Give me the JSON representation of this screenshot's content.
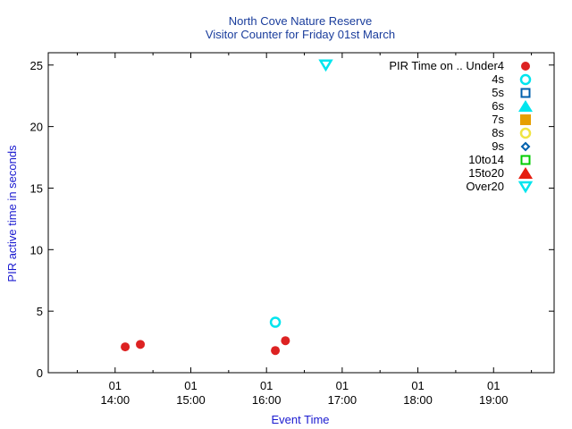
{
  "chart_data": {
    "type": "scatter",
    "title": "North Cove Nature Reserve",
    "subtitle": "Visitor Counter for Friday 01st March",
    "xlabel": "Event Time",
    "ylabel": "PIR active time in seconds",
    "xlim": [
      "13:07",
      "19:48"
    ],
    "ylim": [
      0,
      26
    ],
    "x_ticks": [
      {
        "value": "14:00",
        "day": "01",
        "time": "14:00"
      },
      {
        "value": "15:00",
        "day": "01",
        "time": "15:00"
      },
      {
        "value": "16:00",
        "day": "01",
        "time": "16:00"
      },
      {
        "value": "17:00",
        "day": "01",
        "time": "17:00"
      },
      {
        "value": "18:00",
        "day": "01",
        "time": "18:00"
      },
      {
        "value": "19:00",
        "day": "01",
        "time": "19:00"
      }
    ],
    "y_ticks": [
      "0",
      "5",
      "10",
      "15",
      "20",
      "25"
    ],
    "legend_position": "top-right",
    "legend_title": "PIR Time on ..",
    "series": [
      {
        "name": "Under4",
        "marker": "circle-filled",
        "color": "#dd2222",
        "points": [
          {
            "x": "14:08",
            "y": 2.1
          },
          {
            "x": "14:20",
            "y": 2.3
          },
          {
            "x": "16:07",
            "y": 1.8
          },
          {
            "x": "16:15",
            "y": 2.6
          }
        ]
      },
      {
        "name": "4s",
        "marker": "circle-open",
        "color": "#00e5ee",
        "points": [
          {
            "x": "16:07",
            "y": 4.1
          }
        ]
      },
      {
        "name": "5s",
        "marker": "square-open",
        "color": "#0060ad",
        "points": []
      },
      {
        "name": "6s",
        "marker": "triangle-up-filled",
        "color": "#00e5ee",
        "points": []
      },
      {
        "name": "7s",
        "marker": "square-filled",
        "color": "#e69f00",
        "points": []
      },
      {
        "name": "8s",
        "marker": "circle-open",
        "color": "#f0e442",
        "points": []
      },
      {
        "name": "9s",
        "marker": "diamond-open",
        "color": "#0060ad",
        "points": []
      },
      {
        "name": "10to14",
        "marker": "square-open",
        "color": "#00cc00",
        "points": []
      },
      {
        "name": "15to20",
        "marker": "triangle-up-filled",
        "color": "#e51e10",
        "points": []
      },
      {
        "name": "Over20",
        "marker": "triangle-down-open",
        "color": "#00e5ee",
        "points": [
          {
            "x": "16:47",
            "y": 25
          }
        ]
      }
    ]
  }
}
